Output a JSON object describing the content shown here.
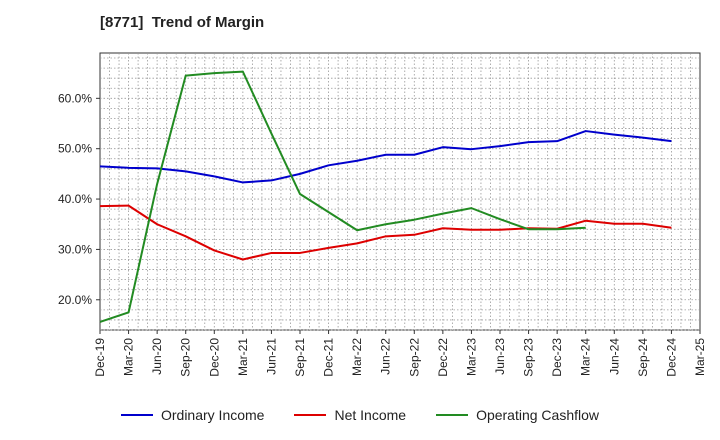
{
  "chart_data": {
    "type": "line",
    "title": "[8771]  Trend of Margin",
    "x": [
      "Dec-19",
      "Mar-20",
      "Jun-20",
      "Sep-20",
      "Dec-20",
      "Mar-21",
      "Jun-21",
      "Sep-21",
      "Dec-21",
      "Mar-22",
      "Jun-22",
      "Sep-22",
      "Dec-22",
      "Mar-23",
      "Jun-23",
      "Sep-23",
      "Dec-23",
      "Mar-24",
      "Jun-24",
      "Sep-24",
      "Dec-24",
      "Mar-25"
    ],
    "ylim": [
      14,
      69
    ],
    "y_ticks": [
      20,
      30,
      40,
      50,
      60
    ],
    "y_tick_labels": [
      "20.0%",
      "30.0%",
      "40.0%",
      "50.0%",
      "60.0%"
    ],
    "grid": true,
    "legend_position": "bottom",
    "series": [
      {
        "name": "Ordinary Income",
        "color": "#0000cc",
        "values": [
          46.5,
          46.2,
          46.1,
          45.5,
          44.5,
          43.3,
          43.7,
          45.0,
          46.7,
          47.6,
          48.8,
          48.8,
          50.3,
          49.9,
          50.5,
          51.3,
          51.5,
          53.5,
          52.8,
          52.2,
          51.5,
          null
        ]
      },
      {
        "name": "Net Income",
        "color": "#dd0000",
        "values": [
          38.6,
          38.7,
          35.0,
          32.6,
          29.8,
          28.0,
          29.3,
          29.3,
          30.3,
          31.2,
          32.6,
          32.9,
          34.2,
          33.9,
          33.9,
          34.2,
          34.1,
          35.7,
          35.1,
          35.1,
          34.3,
          null
        ]
      },
      {
        "name": "Operating Cashflow",
        "color": "#228b22",
        "values": [
          15.6,
          17.5,
          43.0,
          64.5,
          65.0,
          65.3,
          53.0,
          41.0,
          37.4,
          33.8,
          35.0,
          35.9,
          37.1,
          38.2,
          36.0,
          34.0,
          34.0,
          34.3,
          null,
          null,
          null,
          null
        ]
      }
    ]
  }
}
